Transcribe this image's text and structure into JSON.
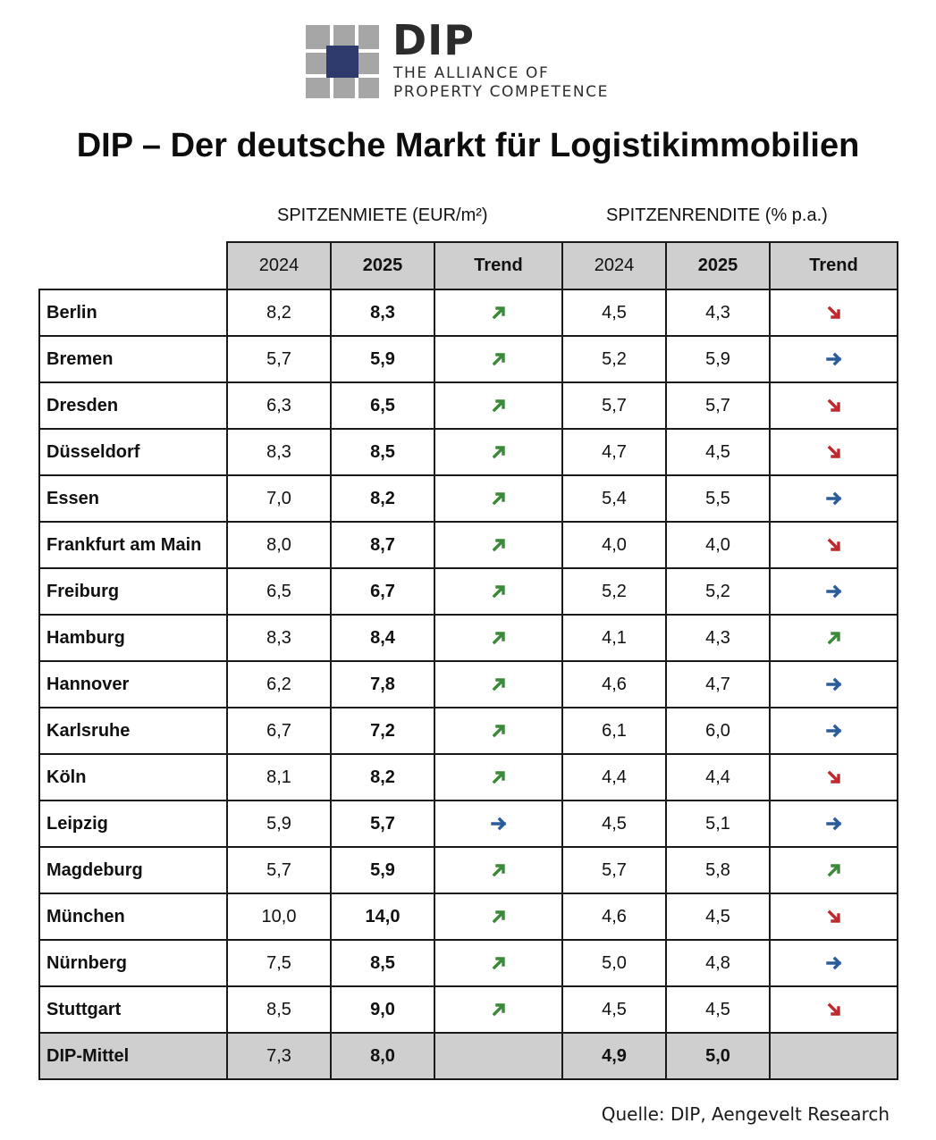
{
  "logo": {
    "name": "DIP",
    "line1": "THE ALLIANCE OF",
    "line2": "PROPERTY COMPETENCE",
    "colors": {
      "gray": "#a6a6a6",
      "navy": "#2d3a6b",
      "text": "#2c2c2c"
    }
  },
  "title": "DIP – Der deutsche Markt für Logistikimmobilien",
  "groups": {
    "rent": "SPITZENMIETE (EUR/m²)",
    "yield": "SPITZENRENDITE (% p.a.)"
  },
  "columns": [
    "2024",
    "2025",
    "Trend",
    "2024",
    "2025",
    "Trend"
  ],
  "trend_colors": {
    "up": "#3a8a3a",
    "right": "#2b5c9a",
    "down": "#c0282d"
  },
  "rows": [
    {
      "city": "Berlin",
      "rent_2024": "8,2",
      "rent_2025": "8,3",
      "rent_trend": "up",
      "yield_2024": "4,5",
      "yield_2025": "4,3",
      "yield_trend": "down"
    },
    {
      "city": "Bremen",
      "rent_2024": "5,7",
      "rent_2025": "5,9",
      "rent_trend": "up",
      "yield_2024": "5,2",
      "yield_2025": "5,9",
      "yield_trend": "right"
    },
    {
      "city": "Dresden",
      "rent_2024": "6,3",
      "rent_2025": "6,5",
      "rent_trend": "up",
      "yield_2024": "5,7",
      "yield_2025": "5,7",
      "yield_trend": "down"
    },
    {
      "city": "Düsseldorf",
      "rent_2024": "8,3",
      "rent_2025": "8,5",
      "rent_trend": "up",
      "yield_2024": "4,7",
      "yield_2025": "4,5",
      "yield_trend": "down"
    },
    {
      "city": "Essen",
      "rent_2024": "7,0",
      "rent_2025": "8,2",
      "rent_trend": "up",
      "yield_2024": "5,4",
      "yield_2025": "5,5",
      "yield_trend": "right"
    },
    {
      "city": "Frankfurt am Main",
      "rent_2024": "8,0",
      "rent_2025": "8,7",
      "rent_trend": "up",
      "yield_2024": "4,0",
      "yield_2025": "4,0",
      "yield_trend": "down"
    },
    {
      "city": "Freiburg",
      "rent_2024": "6,5",
      "rent_2025": "6,7",
      "rent_trend": "up",
      "yield_2024": "5,2",
      "yield_2025": "5,2",
      "yield_trend": "right"
    },
    {
      "city": "Hamburg",
      "rent_2024": "8,3",
      "rent_2025": "8,4",
      "rent_trend": "up",
      "yield_2024": "4,1",
      "yield_2025": "4,3",
      "yield_trend": "up"
    },
    {
      "city": "Hannover",
      "rent_2024": "6,2",
      "rent_2025": "7,8",
      "rent_trend": "up",
      "yield_2024": "4,6",
      "yield_2025": "4,7",
      "yield_trend": "right"
    },
    {
      "city": "Karlsruhe",
      "rent_2024": "6,7",
      "rent_2025": "7,2",
      "rent_trend": "up",
      "yield_2024": "6,1",
      "yield_2025": "6,0",
      "yield_trend": "right"
    },
    {
      "city": "Köln",
      "rent_2024": "8,1",
      "rent_2025": "8,2",
      "rent_trend": "up",
      "yield_2024": "4,4",
      "yield_2025": "4,4",
      "yield_trend": "down"
    },
    {
      "city": "Leipzig",
      "rent_2024": "5,9",
      "rent_2025": "5,7",
      "rent_trend": "right",
      "yield_2024": "4,5",
      "yield_2025": "5,1",
      "yield_trend": "right"
    },
    {
      "city": "Magdeburg",
      "rent_2024": "5,7",
      "rent_2025": "5,9",
      "rent_trend": "up",
      "yield_2024": "5,7",
      "yield_2025": "5,8",
      "yield_trend": "up"
    },
    {
      "city": "München",
      "rent_2024": "10,0",
      "rent_2025": "14,0",
      "rent_trend": "up",
      "yield_2024": "4,6",
      "yield_2025": "4,5",
      "yield_trend": "down"
    },
    {
      "city": "Nürnberg",
      "rent_2024": "7,5",
      "rent_2025": "8,5",
      "rent_trend": "up",
      "yield_2024": "5,0",
      "yield_2025": "4,8",
      "yield_trend": "right"
    },
    {
      "city": "Stuttgart",
      "rent_2024": "8,5",
      "rent_2025": "9,0",
      "rent_trend": "up",
      "yield_2024": "4,5",
      "yield_2025": "4,5",
      "yield_trend": "down"
    }
  ],
  "average": {
    "city": "DIP-Mittel",
    "rent_2024": "7,3",
    "rent_2025": "8,0",
    "yield_2024": "4,9",
    "yield_2025": "5,0"
  },
  "source": "Quelle: DIP, Aengevelt Research"
}
